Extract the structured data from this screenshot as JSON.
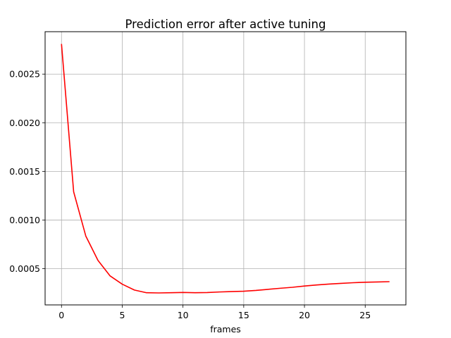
{
  "chart_data": {
    "type": "line",
    "title": "Prediction error after active tuning",
    "xlabel": "frames",
    "ylabel": "",
    "xlim": [
      -1.35,
      28.35
    ],
    "ylim": [
      0.000127,
      0.002936
    ],
    "xticks": [
      0,
      5,
      10,
      15,
      20,
      25
    ],
    "xtick_labels": [
      "0",
      "5",
      "10",
      "15",
      "20",
      "25"
    ],
    "yticks": [
      0.0005,
      0.001,
      0.0015,
      0.002,
      0.0025
    ],
    "ytick_labels": [
      "0.0005",
      "0.0010",
      "0.0015",
      "0.0020",
      "0.0025"
    ],
    "grid": true,
    "series": [
      {
        "color": "#ff0000",
        "x": [
          0,
          1,
          2,
          3,
          4,
          5,
          6,
          7,
          8,
          9,
          10,
          11,
          12,
          13,
          14,
          15,
          16,
          17,
          18,
          19,
          20,
          21,
          22,
          23,
          24,
          25,
          26,
          27
        ],
        "y": [
          0.00281,
          0.00129,
          0.000835,
          0.000585,
          0.000425,
          0.00034,
          0.00028,
          0.000252,
          0.00025,
          0.000252,
          0.000255,
          0.000252,
          0.000254,
          0.00026,
          0.000264,
          0.000268,
          0.000276,
          0.000287,
          0.000298,
          0.000308,
          0.000321,
          0.000332,
          0.000341,
          0.000348,
          0.000355,
          0.00036,
          0.000363,
          0.000366
        ]
      }
    ]
  }
}
